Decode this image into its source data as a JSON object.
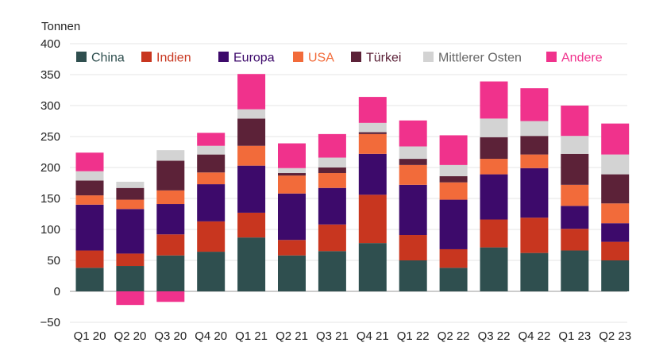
{
  "chart_data": {
    "type": "bar",
    "stacked": true,
    "unit_label": "Tonnen",
    "ylim": [
      -50,
      400
    ],
    "yticks": [
      -50,
      0,
      50,
      100,
      150,
      200,
      250,
      300,
      350,
      400
    ],
    "grid": true,
    "legend_position": "top",
    "categories": [
      "Q1 20",
      "Q2 20",
      "Q3 20",
      "Q4 20",
      "Q1 21",
      "Q2 21",
      "Q3 21",
      "Q4 21",
      "Q1 22",
      "Q2 22",
      "Q3 22",
      "Q4 22",
      "Q1 23",
      "Q2 23"
    ],
    "series": [
      {
        "name": "China",
        "color": "#2f4f4f",
        "values": [
          38,
          41,
          58,
          64,
          87,
          58,
          65,
          78,
          50,
          38,
          71,
          62,
          66,
          50
        ]
      },
      {
        "name": "Indien",
        "color": "#c8361f",
        "values": [
          28,
          20,
          34,
          49,
          40,
          25,
          43,
          78,
          41,
          30,
          45,
          57,
          35,
          30
        ]
      },
      {
        "name": "Europa",
        "color": "#3d0a6b",
        "values": [
          74,
          72,
          49,
          60,
          76,
          75,
          59,
          66,
          81,
          80,
          73,
          80,
          37,
          30
        ]
      },
      {
        "name": "USA",
        "color": "#f26b3a",
        "values": [
          15,
          15,
          22,
          19,
          32,
          29,
          24,
          32,
          32,
          28,
          25,
          22,
          34,
          32
        ]
      },
      {
        "name": "Türkei",
        "color": "#5c2238",
        "values": [
          24,
          19,
          48,
          29,
          44,
          4,
          9,
          3,
          10,
          10,
          35,
          30,
          50,
          47
        ]
      },
      {
        "name": "Mittlerer Osten",
        "color": "#d3d3d3",
        "values": [
          15,
          10,
          17,
          14,
          15,
          8,
          16,
          15,
          20,
          18,
          30,
          24,
          29,
          32
        ]
      },
      {
        "name": "Andere",
        "color": "#f0328c",
        "values": [
          30,
          -22,
          -17,
          21,
          57,
          40,
          38,
          42,
          42,
          48,
          60,
          53,
          49,
          50
        ]
      }
    ]
  }
}
